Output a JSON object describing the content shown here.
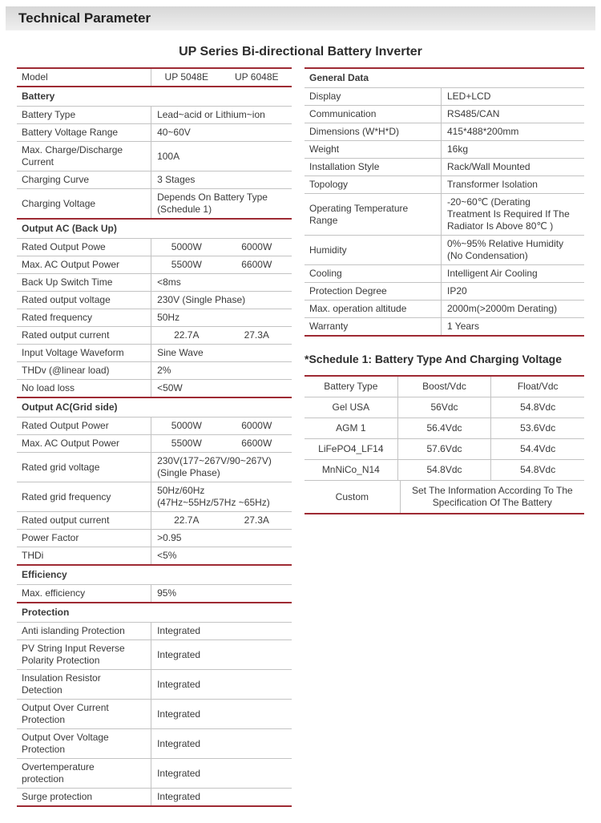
{
  "page": {
    "header_title": "Technical Parameter",
    "table_title": "UP Series Bi-directional Battery Inverter",
    "schedule_title": "*Schedule 1: Battery Type And Charging Voltage"
  },
  "colors": {
    "accent": "#9e2a33",
    "grid_line": "#c3c3c3",
    "text": "#3a3a3a"
  },
  "left_table": {
    "rows": [
      {
        "type": "pair",
        "label": "Model",
        "v1": "UP 5048E",
        "v2": "UP 6048E"
      },
      {
        "type": "section",
        "label": "Battery"
      },
      {
        "type": "single",
        "label": "Battery Type",
        "value": "Lead~acid or Lithium~ion"
      },
      {
        "type": "single",
        "label": "Battery Voltage Range",
        "value": "40~60V"
      },
      {
        "type": "single",
        "label": "Max. Charge/Discharge\nCurrent",
        "value": "100A"
      },
      {
        "type": "single",
        "label": "Charging Curve",
        "value": "3 Stages"
      },
      {
        "type": "single",
        "label": "Charging Voltage",
        "value": "Depends On Battery Type\n(Schedule 1)"
      },
      {
        "type": "section",
        "label": "Output AC (Back Up)"
      },
      {
        "type": "pair",
        "label": "Rated Output Powe",
        "v1": "5000W",
        "v2": "6000W"
      },
      {
        "type": "pair",
        "label": "Max. AC Output Power",
        "v1": "5500W",
        "v2": "6600W"
      },
      {
        "type": "single",
        "label": "Back Up Switch Time",
        "value": "<8ms"
      },
      {
        "type": "single",
        "label": "Rated output voltage",
        "value": "230V (Single Phase)"
      },
      {
        "type": "single",
        "label": "Rated frequency",
        "value": "50Hz"
      },
      {
        "type": "pair",
        "label": "Rated output current",
        "v1": "22.7A",
        "v2": "27.3A"
      },
      {
        "type": "single",
        "label": "Input Voltage Waveform",
        "value": "Sine Wave"
      },
      {
        "type": "single",
        "label": "THDv (@linear load)",
        "value": "2%"
      },
      {
        "type": "single",
        "label": "No load loss",
        "value": "<50W"
      },
      {
        "type": "section",
        "label": "Output AC(Grid side)"
      },
      {
        "type": "pair",
        "label": "Rated Output Power",
        "v1": "5000W",
        "v2": "6000W"
      },
      {
        "type": "pair",
        "label": "Max. AC Output Power",
        "v1": "5500W",
        "v2": "6600W"
      },
      {
        "type": "single",
        "label": "Rated grid voltage",
        "value": "230V(177~267V/90~267V)\n(Single Phase)"
      },
      {
        "type": "single",
        "label": "Rated grid frequency",
        "value": "50Hz/60Hz\n(47Hz~55Hz/57Hz ~65Hz)"
      },
      {
        "type": "pair",
        "label": "Rated output current",
        "v1": "22.7A",
        "v2": "27.3A"
      },
      {
        "type": "single",
        "label": "Power Factor",
        "value": ">0.95"
      },
      {
        "type": "single",
        "label": "THDi",
        "value": "<5%"
      },
      {
        "type": "section",
        "label": "Efficiency"
      },
      {
        "type": "single",
        "label": "Max. efficiency",
        "value": "95%"
      },
      {
        "type": "section",
        "label": "Protection"
      },
      {
        "type": "single",
        "label": "Anti islanding Protection",
        "value": "Integrated"
      },
      {
        "type": "single",
        "label": "PV String Input Reverse\nPolarity Protection",
        "value": "Integrated"
      },
      {
        "type": "single",
        "label": "Insulation Resistor\nDetection",
        "value": "Integrated"
      },
      {
        "type": "single",
        "label": "Output Over Current\nProtection",
        "value": "Integrated"
      },
      {
        "type": "single",
        "label": "Output Over Voltage\nProtection",
        "value": "Integrated"
      },
      {
        "type": "single",
        "label": "Overtemperature\nprotection",
        "value": "Integrated"
      },
      {
        "type": "single",
        "label": "Surge protection",
        "value": "Integrated"
      }
    ]
  },
  "right_table": {
    "rows": [
      {
        "type": "section",
        "label": "General Data"
      },
      {
        "type": "single",
        "label": "Display",
        "value": "LED+LCD"
      },
      {
        "type": "single",
        "label": "Communication",
        "value": "RS485/CAN"
      },
      {
        "type": "single",
        "label": "Dimensions (W*H*D)",
        "value": "415*488*200mm"
      },
      {
        "type": "single",
        "label": "Weight",
        "value": "16kg"
      },
      {
        "type": "single",
        "label": "Installation Style",
        "value": "Rack/Wall Mounted"
      },
      {
        "type": "single",
        "label": "Topology",
        "value": "Transformer Isolation"
      },
      {
        "type": "single",
        "label": "Operating Temperature\nRange",
        "value": "-20~60℃ (Derating\nTreatment Is Required If The\nRadiator Is Above 80℃ )"
      },
      {
        "type": "single",
        "label": "Humidity",
        "value": "0%~95% Relative Humidity\n(No Condensation)"
      },
      {
        "type": "single",
        "label": "Cooling",
        "value": "Intelligent Air Cooling"
      },
      {
        "type": "single",
        "label": "Protection Degree",
        "value": "IP20"
      },
      {
        "type": "single",
        "label": "Max. operation altitude",
        "value": "2000m(>2000m Derating)"
      },
      {
        "type": "single",
        "label": "Warranty",
        "value": "1 Years"
      }
    ]
  },
  "schedule_table": {
    "headers": [
      "Battery Type",
      "Boost/Vdc",
      "Float/Vdc"
    ],
    "rows": [
      [
        "Gel USA",
        "56Vdc",
        "54.8Vdc"
      ],
      [
        "AGM 1",
        "56.4Vdc",
        "53.6Vdc"
      ],
      [
        "LiFePO4_LF14",
        "57.6Vdc",
        "54.4Vdc"
      ],
      [
        "MnNiCo_N14",
        "54.8Vdc",
        "54.8Vdc"
      ]
    ],
    "custom_row": {
      "label": "Custom",
      "value": "Set The Information According To The\nSpecification Of The Battery"
    }
  }
}
